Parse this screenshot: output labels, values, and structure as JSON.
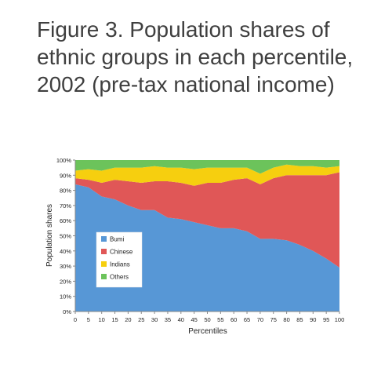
{
  "page": {
    "title": "Figure 3. Population shares of ethnic groups in each percentile, 2002 (pre-tax national income)"
  },
  "chart_data": {
    "type": "area",
    "stacked": true,
    "title": "",
    "xlabel": "Percentiles",
    "ylabel": "Population shares",
    "xlim": [
      0,
      100
    ],
    "ylim": [
      0,
      100
    ],
    "x_ticks": [
      0,
      5,
      10,
      15,
      20,
      25,
      30,
      35,
      40,
      45,
      50,
      55,
      60,
      65,
      70,
      75,
      80,
      85,
      90,
      95,
      100
    ],
    "y_ticks": [
      "0%",
      "10%",
      "20%",
      "30%",
      "40%",
      "50%",
      "60%",
      "70%",
      "80%",
      "90%",
      "100%"
    ],
    "legend_position": "bottom-left",
    "grid": false,
    "x": [
      0,
      5,
      10,
      15,
      20,
      25,
      30,
      35,
      40,
      45,
      50,
      55,
      60,
      65,
      70,
      75,
      80,
      85,
      90,
      95,
      100
    ],
    "series": [
      {
        "name": "Bumi",
        "color": "#5797d6",
        "values": [
          84,
          82,
          76,
          74,
          70,
          67,
          67,
          62,
          61,
          59,
          57,
          55,
          55,
          53,
          48,
          48,
          47,
          44,
          40,
          35,
          29
        ]
      },
      {
        "name": "Chinese",
        "color": "#e05757",
        "values": [
          4,
          5,
          9,
          13,
          16,
          18,
          19,
          24,
          24,
          24,
          28,
          30,
          32,
          35,
          36,
          40,
          43,
          46,
          50,
          55,
          63
        ]
      },
      {
        "name": "Indians",
        "color": "#f6cf0f",
        "values": [
          5,
          7,
          8,
          8,
          9,
          10,
          10,
          9,
          10,
          11,
          10,
          10,
          8,
          7,
          7,
          7,
          7,
          6,
          6,
          5,
          4
        ]
      },
      {
        "name": "Others",
        "color": "#6cc35b",
        "values": [
          7,
          6,
          7,
          5,
          5,
          5,
          4,
          5,
          5,
          6,
          5,
          5,
          5,
          5,
          9,
          5,
          3,
          4,
          4,
          5,
          4
        ]
      }
    ]
  }
}
